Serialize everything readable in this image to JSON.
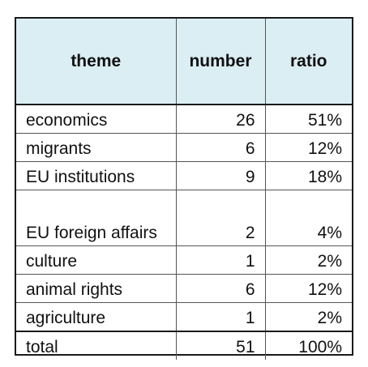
{
  "table": {
    "headers": [
      "theme",
      "number",
      "ratio"
    ],
    "rows": [
      {
        "theme": "economics",
        "number": "26",
        "ratio": "51%"
      },
      {
        "theme": "migrants",
        "number": "6",
        "ratio": "12%"
      },
      {
        "theme": "EU institutions",
        "number": "9",
        "ratio": "18%"
      },
      {
        "theme": "EU foreign affairs",
        "number": "2",
        "ratio": "4%"
      },
      {
        "theme": "culture",
        "number": "1",
        "ratio": "2%"
      },
      {
        "theme": "animal rights",
        "number": "6",
        "ratio": "12%"
      },
      {
        "theme": "agriculture",
        "number": "1",
        "ratio": "2%"
      }
    ],
    "total": {
      "theme": "total",
      "number": "51",
      "ratio": "100%"
    }
  }
}
